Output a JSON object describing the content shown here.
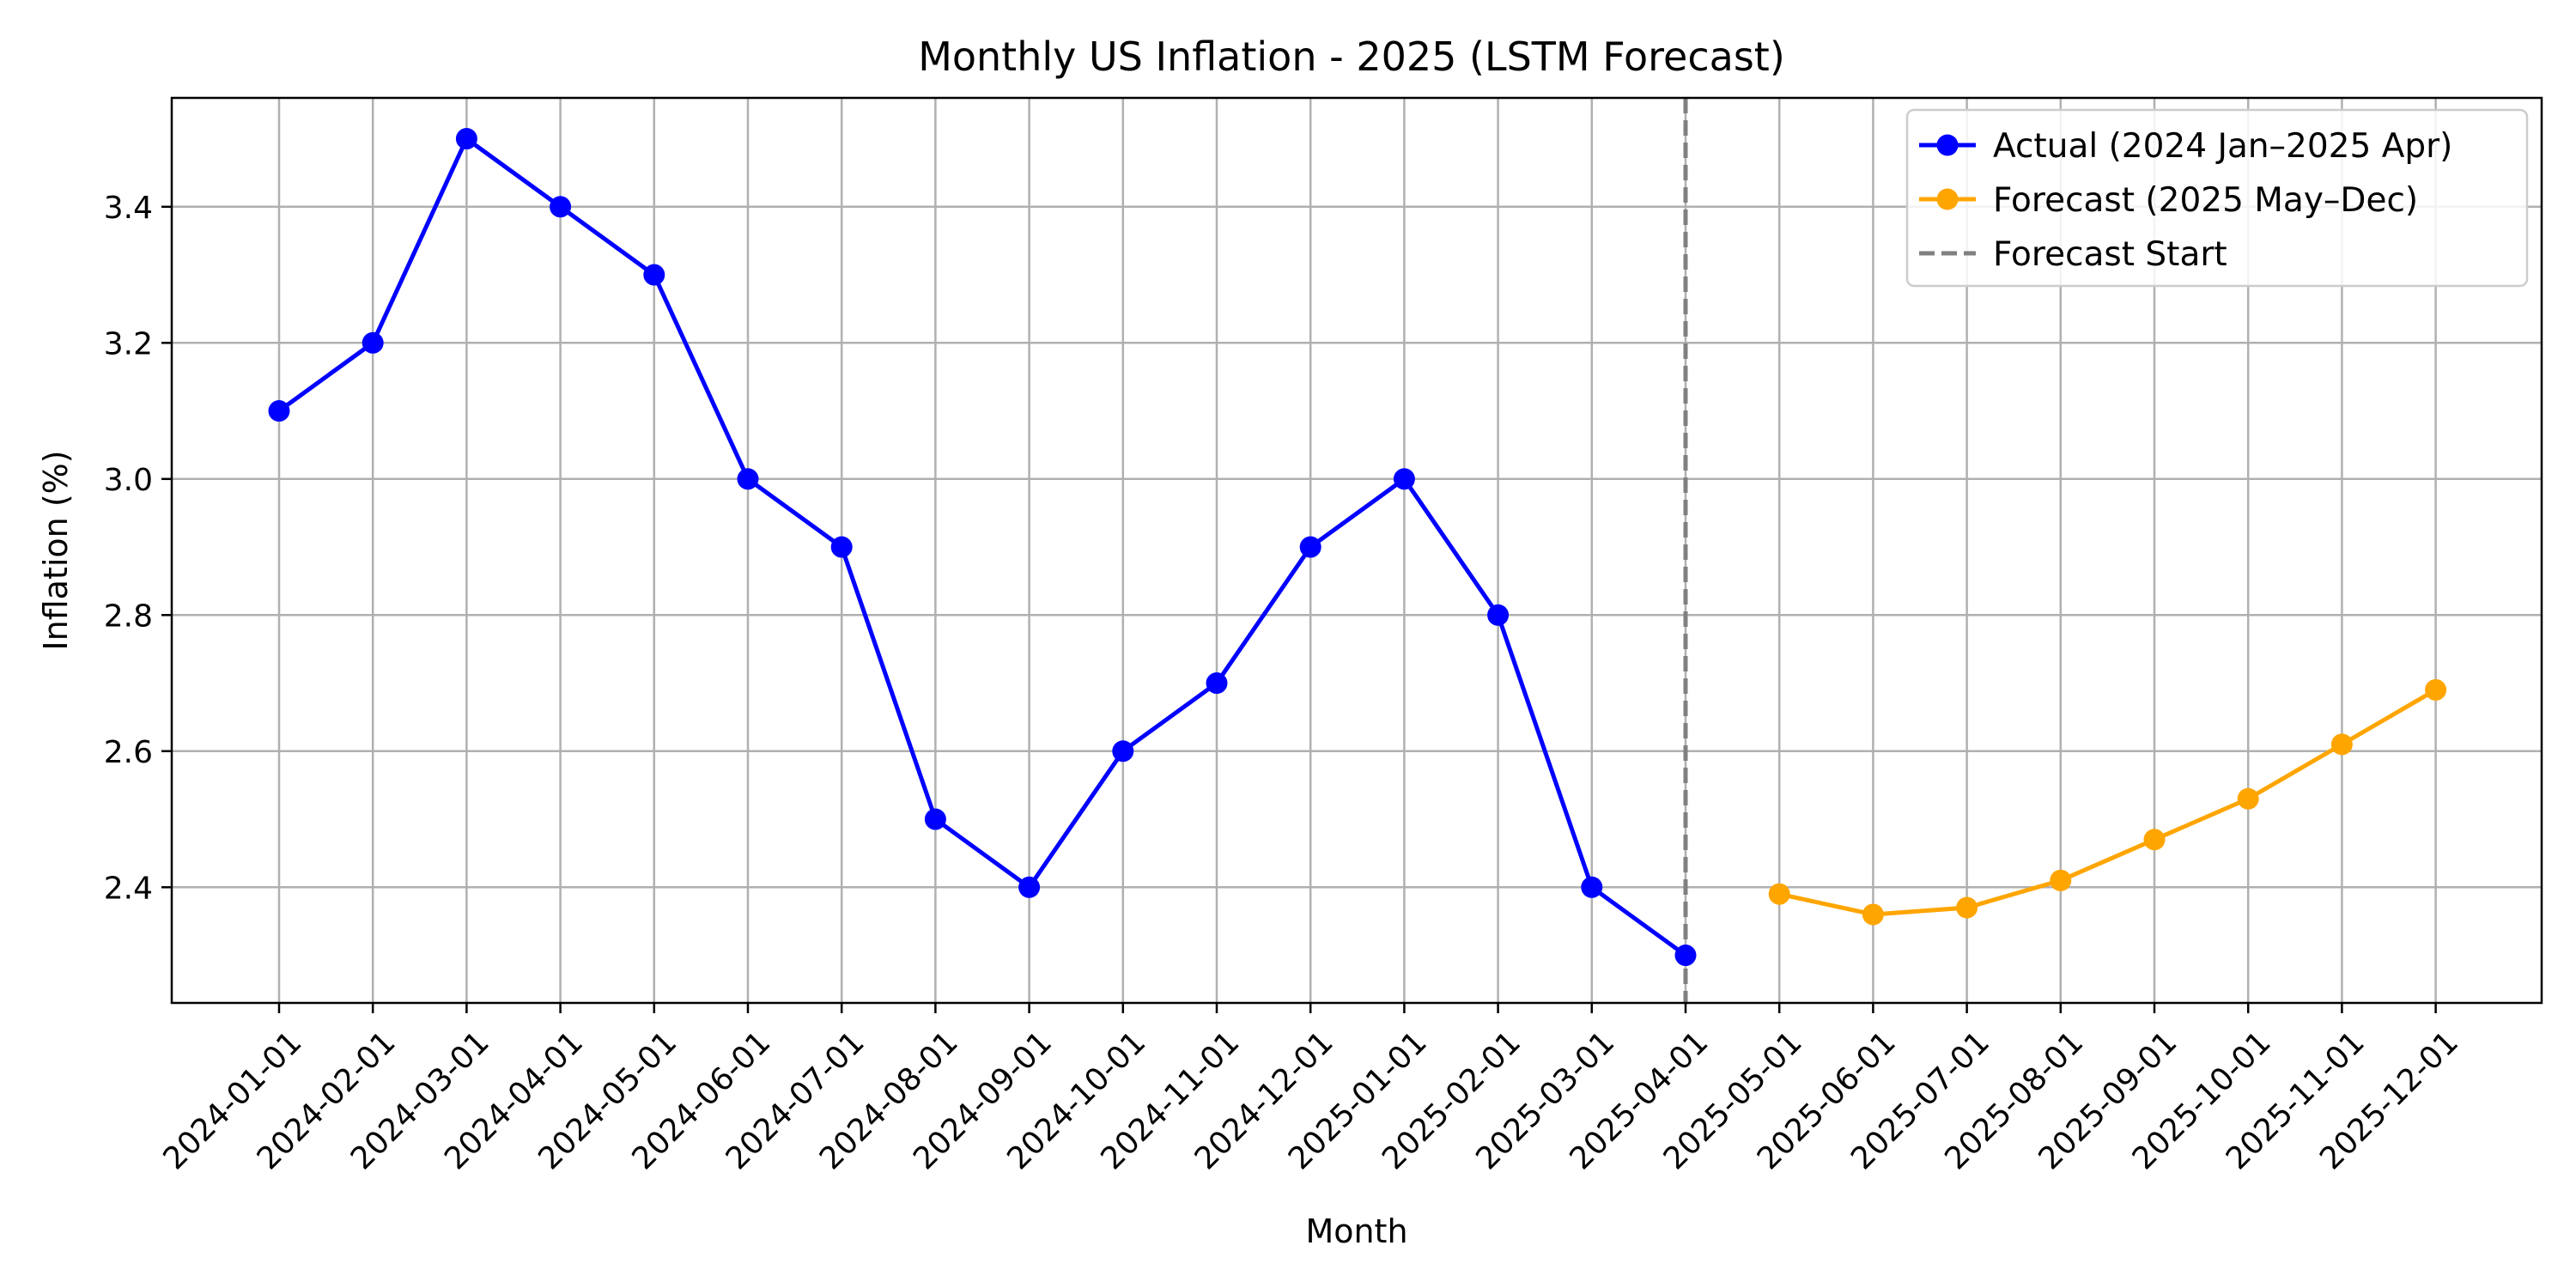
{
  "chart_data": {
    "type": "line",
    "title": "Monthly US Inflation - 2025 (LSTM Forecast)",
    "xlabel": "Month",
    "ylabel": "Inflation (%)",
    "x": [
      "2024-01-01",
      "2024-02-01",
      "2024-03-01",
      "2024-04-01",
      "2024-05-01",
      "2024-06-01",
      "2024-07-01",
      "2024-08-01",
      "2024-09-01",
      "2024-10-01",
      "2024-11-01",
      "2024-12-01",
      "2025-01-01",
      "2025-02-01",
      "2025-03-01",
      "2025-04-01",
      "2025-05-01",
      "2025-06-01",
      "2025-07-01",
      "2025-08-01",
      "2025-09-01",
      "2025-10-01",
      "2025-11-01",
      "2025-12-01"
    ],
    "ylim": [
      2.23,
      3.56
    ],
    "yticks": [
      2.4,
      2.6,
      2.8,
      3.0,
      3.2,
      3.4
    ],
    "grid": true,
    "legend_position": "top-right",
    "series": [
      {
        "name": "Actual (2024 Jan–2025 Apr)",
        "color": "#0000ff",
        "x": [
          "2024-01-01",
          "2024-02-01",
          "2024-03-01",
          "2024-04-01",
          "2024-05-01",
          "2024-06-01",
          "2024-07-01",
          "2024-08-01",
          "2024-09-01",
          "2024-10-01",
          "2024-11-01",
          "2024-12-01",
          "2025-01-01",
          "2025-02-01",
          "2025-03-01",
          "2025-04-01"
        ],
        "values": [
          3.1,
          3.2,
          3.5,
          3.4,
          3.3,
          3.0,
          2.9,
          2.5,
          2.4,
          2.6,
          2.7,
          2.9,
          3.0,
          2.8,
          2.4,
          2.3
        ]
      },
      {
        "name": "Forecast (2025 May–Dec)",
        "color": "#ffa500",
        "x": [
          "2025-05-01",
          "2025-06-01",
          "2025-07-01",
          "2025-08-01",
          "2025-09-01",
          "2025-10-01",
          "2025-11-01",
          "2025-12-01"
        ],
        "values": [
          2.39,
          2.36,
          2.37,
          2.41,
          2.47,
          2.53,
          2.61,
          2.69
        ]
      }
    ],
    "vline": {
      "name": "Forecast Start",
      "x": "2025-04-01",
      "color": "#808080",
      "style": "dashed"
    }
  }
}
